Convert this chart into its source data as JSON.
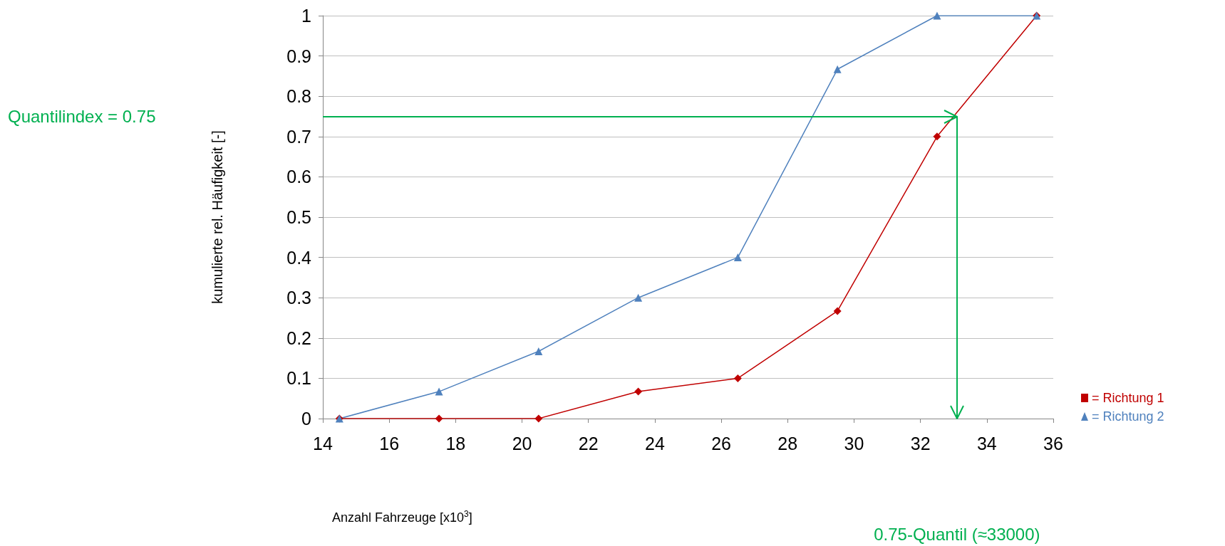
{
  "chart_data": {
    "type": "line",
    "xlabel": "Anzahl Fahrzeuge [x10$^{3}$]",
    "ylabel": "kumulierte rel. Häufigkeit [-]",
    "x": [
      14.5,
      17.5,
      20.5,
      23.5,
      26.5,
      29.5,
      32.5,
      35.5
    ],
    "series": [
      {
        "name": "= Richtung 1",
        "color": "#c00000",
        "marker": "diamond",
        "values": [
          0,
          0,
          0,
          0.067,
          0.1,
          0.267,
          0.7,
          1
        ]
      },
      {
        "name": "= Richtung 2",
        "color": "#4f81bd",
        "marker": "triangle",
        "values": [
          0,
          0.067,
          0.167,
          0.3,
          0.4,
          0.867,
          1,
          1
        ]
      }
    ],
    "xlim": [
      14,
      36
    ],
    "xticks": [
      14,
      16,
      18,
      20,
      22,
      24,
      26,
      28,
      30,
      32,
      34,
      36
    ],
    "ylim": [
      0,
      1
    ],
    "yticks": [
      0,
      0.1,
      0.2,
      0.3,
      0.4,
      0.5,
      0.6,
      0.7,
      0.8,
      0.9,
      1
    ],
    "grid": "y",
    "legend": "bottom right",
    "ref_lines": [
      {
        "axis": "y",
        "value": 0.75,
        "label": "Quantilindex = 0.75",
        "color": "#00b050"
      },
      {
        "axis": "x",
        "value": 33.1,
        "label": "0.75-Quantil (≈33000)",
        "color": "#00b050"
      }
    ]
  }
}
